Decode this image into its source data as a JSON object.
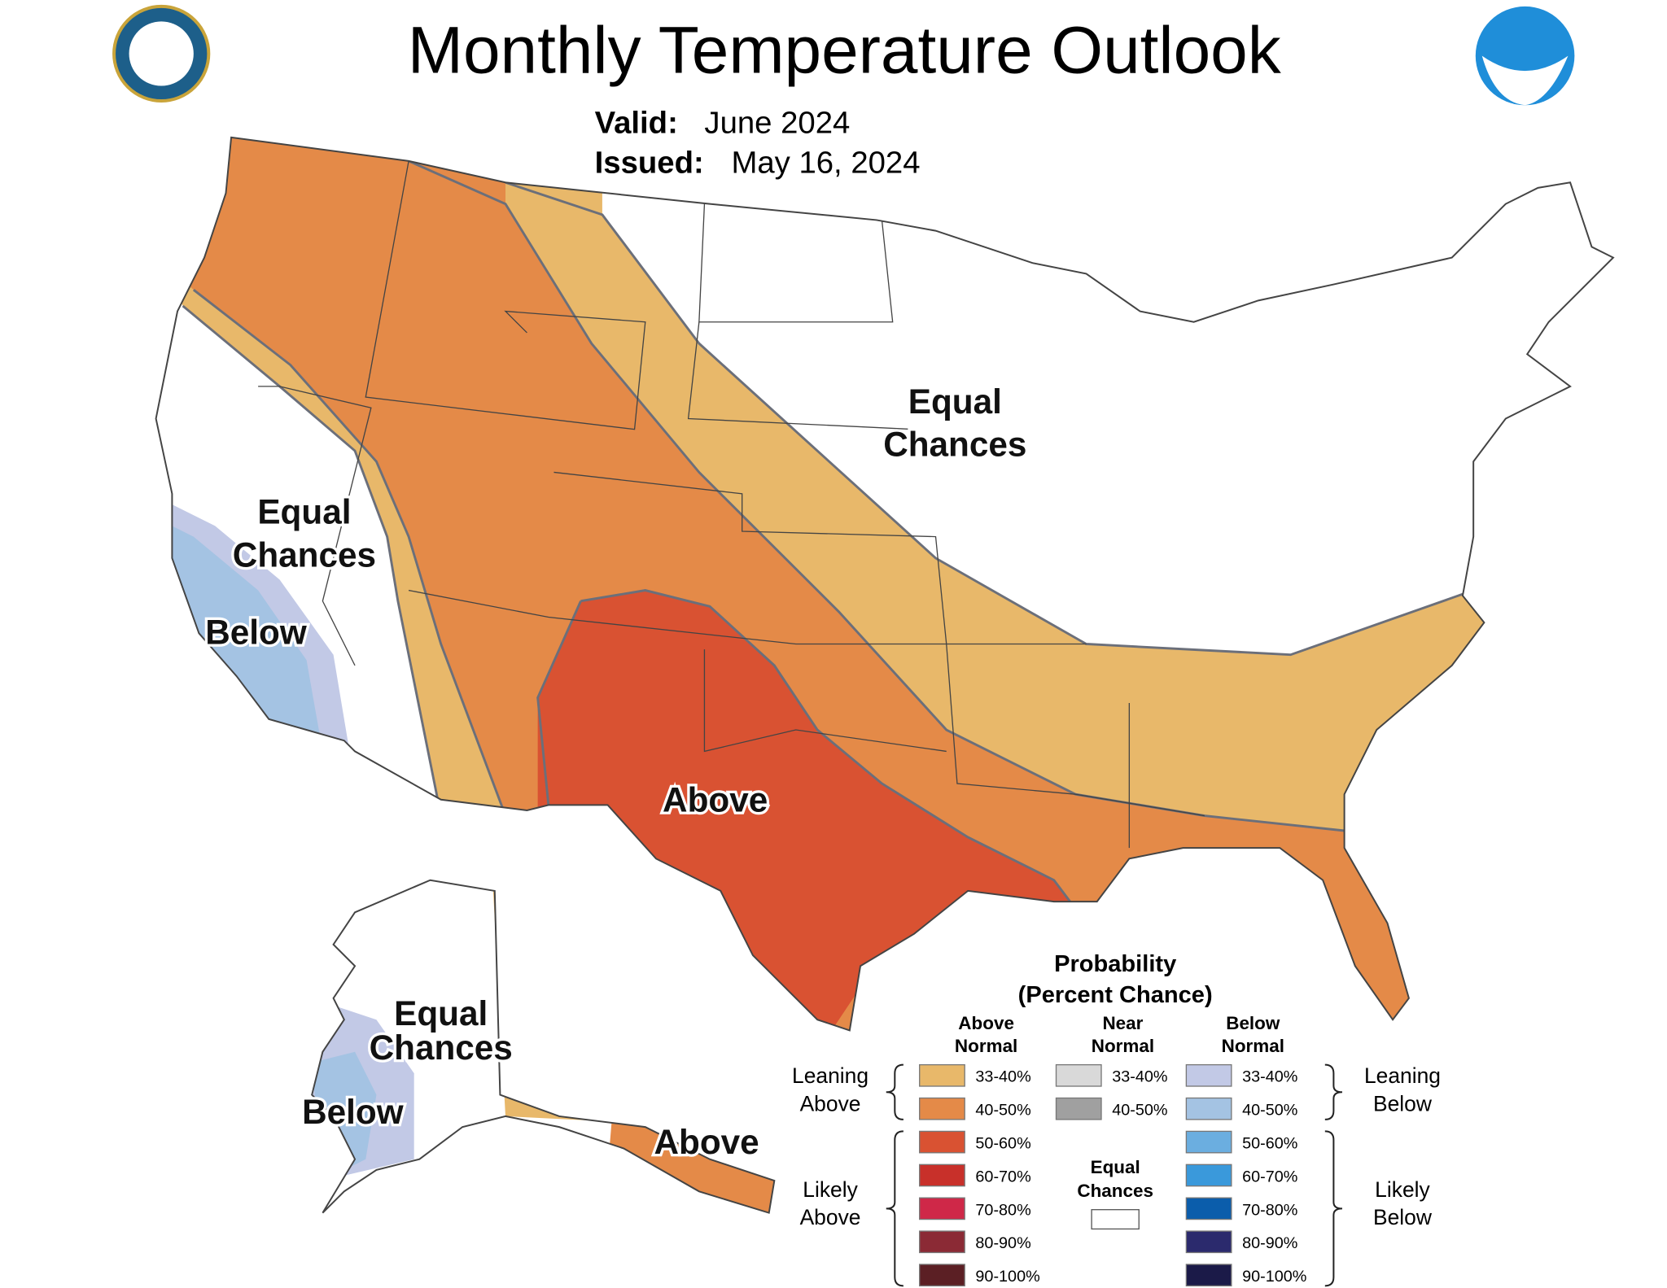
{
  "header": {
    "title": "Monthly Temperature Outlook",
    "valid_label": "Valid:",
    "valid": "June 2024",
    "issued_label": "Issued:",
    "issued": "May 16, 2024"
  },
  "map_labels": [
    {
      "lines": [
        "Equal",
        "Chances"
      ]
    },
    {
      "lines": [
        "Equal",
        "Chances"
      ]
    },
    {
      "lines": [
        "Below"
      ]
    },
    {
      "lines": [
        "Above"
      ]
    },
    {
      "lines": [
        "Equal",
        "Chances"
      ]
    },
    {
      "lines": [
        "Below"
      ]
    },
    {
      "lines": [
        "Above"
      ]
    }
  ],
  "legend": {
    "title": "Probability",
    "subtitle": "(Percent Chance)",
    "columns": [
      {
        "heading": [
          "Above",
          "Normal"
        ],
        "entries": [
          {
            "label": "33-40%",
            "color": "#e8b86a"
          },
          {
            "label": "40-50%",
            "color": "#e48a48"
          },
          {
            "label": "50-60%",
            "color": "#d95232"
          },
          {
            "label": "60-70%",
            "color": "#c8302a"
          },
          {
            "label": "70-80%",
            "color": "#cf2848"
          },
          {
            "label": "80-90%",
            "color": "#8b2a35"
          },
          {
            "label": "90-100%",
            "color": "#5b1f24"
          }
        ]
      },
      {
        "heading": [
          "Near",
          "Normal"
        ],
        "entries": [
          {
            "label": "33-40%",
            "color": "#d9d9d9"
          },
          {
            "label": "40-50%",
            "color": "#a0a0a0"
          }
        ]
      },
      {
        "heading": [
          "Below",
          "Normal"
        ],
        "entries": [
          {
            "label": "33-40%",
            "color": "#c2c9e6"
          },
          {
            "label": "40-50%",
            "color": "#a4c3e3"
          },
          {
            "label": "50-60%",
            "color": "#6baee0"
          },
          {
            "label": "60-70%",
            "color": "#3a99db"
          },
          {
            "label": "70-80%",
            "color": "#0b5dab"
          },
          {
            "label": "80-90%",
            "color": "#2b2a6d"
          },
          {
            "label": "90-100%",
            "color": "#1b1a48"
          }
        ]
      }
    ],
    "equal_chances": {
      "lines": [
        "Equal",
        "Chances"
      ],
      "color": "#ffffff"
    },
    "brackets": [
      {
        "lines": [
          "Leaning",
          "Above"
        ]
      },
      {
        "lines": [
          "Likely",
          "Above"
        ]
      },
      {
        "lines": [
          "Leaning",
          "Below"
        ]
      },
      {
        "lines": [
          "Likely",
          "Below"
        ]
      }
    ]
  }
}
